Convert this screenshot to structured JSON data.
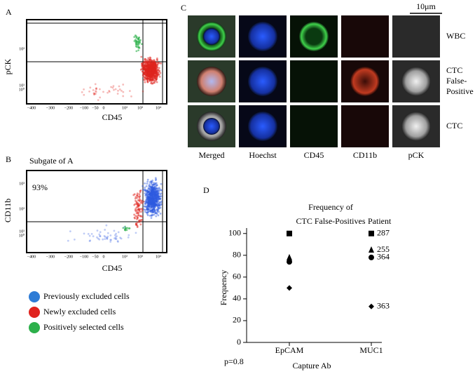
{
  "panels": {
    "a": {
      "label": "A",
      "x_label": "CD45",
      "y_label": "pCK",
      "x_tick_labels": [
        "−400",
        "−300",
        "−200",
        "−100",
        "−50",
        "0",
        "10²",
        "10³",
        "10⁴"
      ],
      "y_tick_labels": [
        "10²",
        "10¹",
        "10⁰"
      ]
    },
    "b": {
      "label": "B",
      "subtitle": "Subgate of A",
      "annotation": "93%",
      "x_label": "CD45",
      "y_label": "CD11b",
      "x_tick_labels": [
        "−400",
        "−300",
        "−200",
        "−100",
        "−50",
        "0",
        "10²",
        "10³",
        "10⁴"
      ],
      "y_tick_labels": [
        "10³",
        "10²",
        "10¹",
        "10⁰"
      ]
    },
    "legend": [
      "Previously excluded cells",
      "Newly excluded cells",
      "Positively selected cells"
    ],
    "c": {
      "label": "C",
      "scale_bar": "10μm",
      "columns": [
        "Merged",
        "Hoechst",
        "CD45",
        "CD11b",
        "pCK"
      ],
      "rows": [
        [
          "WBC"
        ],
        [
          "CTC",
          "False-",
          "Positive"
        ],
        [
          "CTC"
        ]
      ]
    }
  },
  "chart_data": {
    "type": "scatter",
    "label": "D",
    "title": [
      "Frequency of",
      "CTC False-Positives"
    ],
    "x_label": "Capture Ab",
    "y_label": "Frequency",
    "legend_title": "Patient",
    "annotation": "p=0.8",
    "categories": [
      "EpCAM",
      "MUC1"
    ],
    "series": [
      {
        "name": "287",
        "marker": "square",
        "color": "#000000",
        "values": [
          100,
          100
        ]
      },
      {
        "name": "255",
        "marker": "triangle",
        "color": "#000000",
        "values": [
          78,
          85
        ]
      },
      {
        "name": "364",
        "marker": "circle",
        "color": "#000000",
        "values": [
          74,
          78
        ]
      },
      {
        "name": "363",
        "marker": "diamond",
        "color": "#000000",
        "values": [
          50,
          33
        ]
      }
    ],
    "ylim": [
      0,
      105
    ],
    "yticks": [
      0,
      20,
      40,
      60,
      80,
      100
    ]
  }
}
